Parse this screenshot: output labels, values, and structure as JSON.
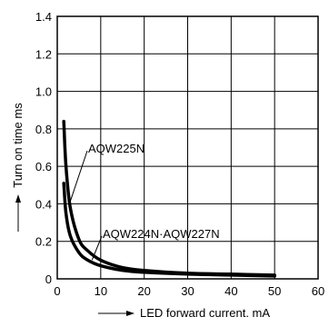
{
  "chart_data": {
    "type": "line",
    "xlabel": "LED forward current, mA",
    "ylabel": "Turn on time ms",
    "xlim": [
      0,
      60
    ],
    "ylim": [
      0,
      1.4
    ],
    "x_ticks": [
      "0",
      "10",
      "20",
      "30",
      "40",
      "50",
      "60"
    ],
    "y_ticks": [
      "0",
      "0.2",
      "0.4",
      "0.6",
      "0.8",
      "1.0",
      "1.2",
      "1.4"
    ],
    "grid": true,
    "series": [
      {
        "name": "AQW225N",
        "x": [
          1.5,
          2,
          3,
          5,
          7,
          10,
          15,
          20,
          30,
          40,
          50
        ],
        "y": [
          0.84,
          0.6,
          0.38,
          0.21,
          0.15,
          0.1,
          0.06,
          0.045,
          0.03,
          0.025,
          0.02
        ]
      },
      {
        "name": "AQW224N·AQW227N",
        "x": [
          1.5,
          2,
          3,
          5,
          7,
          10,
          15,
          20,
          30,
          40,
          50
        ],
        "y": [
          0.51,
          0.35,
          0.23,
          0.14,
          0.1,
          0.07,
          0.045,
          0.035,
          0.025,
          0.02,
          0.015
        ]
      }
    ],
    "colors": {
      "line": "#000000",
      "grid": "#000000",
      "background": "#ffffff"
    }
  }
}
